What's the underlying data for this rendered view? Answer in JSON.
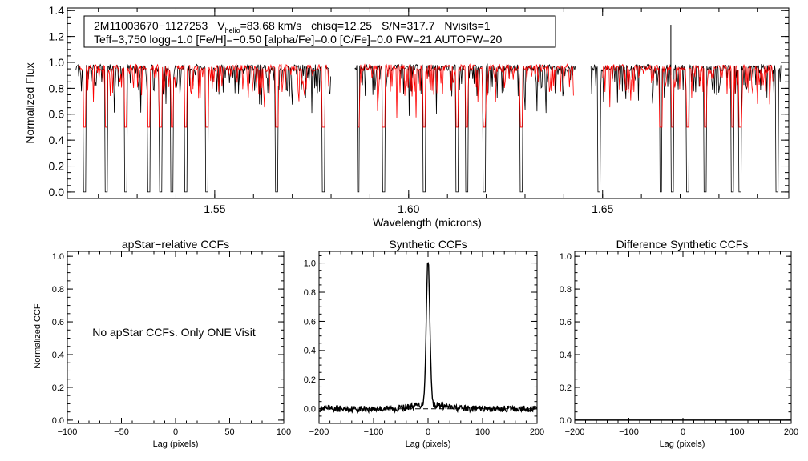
{
  "chart_data": [
    {
      "id": "spectrum",
      "type": "line",
      "xlabel": "Wavelength (microns)",
      "ylabel": "Normalized Flux",
      "xlim": [
        1.512,
        1.698
      ],
      "ylim": [
        -0.05,
        1.42
      ],
      "xticks": [
        {
          "v": 1.55,
          "label": "1.55"
        },
        {
          "v": 1.6,
          "label": "1.60"
        },
        {
          "v": 1.65,
          "label": "1.65"
        }
      ],
      "yticks": [
        {
          "v": 0.0,
          "label": "0.0"
        },
        {
          "v": 0.2,
          "label": "0.2"
        },
        {
          "v": 0.4,
          "label": "0.4"
        },
        {
          "v": 0.6,
          "label": "0.6"
        },
        {
          "v": 0.8,
          "label": "0.8"
        },
        {
          "v": 1.0,
          "label": "1.0"
        },
        {
          "v": 1.2,
          "label": "1.2"
        },
        {
          "v": 1.4,
          "label": "1.4"
        }
      ],
      "chips": [
        [
          1.5142,
          1.58
        ],
        [
          1.5861,
          1.643
        ],
        [
          1.647,
          1.696
        ]
      ],
      "model_ranges": [
        [
          1.515,
          1.5795
        ],
        [
          1.5868,
          1.6425
        ],
        [
          1.65,
          1.694
        ]
      ],
      "deep_lines": [
        1.5165,
        1.522,
        1.527,
        1.533,
        1.536,
        1.539,
        1.5425,
        1.548,
        1.566,
        1.578,
        1.587,
        1.5935,
        1.604,
        1.6125,
        1.615,
        1.6195,
        1.629,
        1.649,
        1.665,
        1.668,
        1.672,
        1.6765,
        1.6835,
        1.6855,
        1.695
      ],
      "series": [
        {
          "name": "Observed spectrum",
          "color": "#000000"
        },
        {
          "name": "Best-fit model",
          "color": "#ff0000"
        }
      ],
      "annotation": {
        "star_id": "2M11003670−1127253",
        "v_prefix": "V",
        "v_sub": "helio",
        "v_value": "=83.68 km/s",
        "chisq": "chisq=12.25",
        "sn": "S/N=317.7",
        "nvisits": "Nvisits=1",
        "params": "Teff=3,750 logg=1.0 [Fe/H]=−0.50 [alpha/Fe]=0.0 [C/Fe]=0.0 FW=21 AUTOFW=20"
      }
    },
    {
      "id": "apstar_ccf",
      "type": "line",
      "title": "apStar−relative CCFs",
      "xlabel": "Lag (pixels)",
      "ylabel": "Normalized CCF",
      "xlim": [
        -100,
        100
      ],
      "ylim": [
        -0.02,
        1.03
      ],
      "xticks": [
        {
          "v": -100,
          "label": "−100"
        },
        {
          "v": -50,
          "label": "−50"
        },
        {
          "v": 0,
          "label": "0"
        },
        {
          "v": 50,
          "label": "50"
        },
        {
          "v": 100,
          "label": "100"
        }
      ],
      "yticks": [
        {
          "v": 0.0,
          "label": "0.0"
        },
        {
          "v": 0.2,
          "label": "0.2"
        },
        {
          "v": 0.4,
          "label": "0.4"
        },
        {
          "v": 0.6,
          "label": "0.6"
        },
        {
          "v": 0.8,
          "label": "0.8"
        },
        {
          "v": 1.0,
          "label": "1.0"
        }
      ],
      "message": "No apStar CCFs.  Only ONE Visit",
      "series": []
    },
    {
      "id": "synthetic_ccf",
      "type": "line",
      "title": "Synthetic CCFs",
      "xlabel": "Lag (pixels)",
      "ylabel": "",
      "xlim": [
        -200,
        200
      ],
      "ylim": [
        -0.1,
        1.08
      ],
      "xticks": [
        {
          "v": -200,
          "label": "−200"
        },
        {
          "v": -100,
          "label": "−100"
        },
        {
          "v": 0,
          "label": "0"
        },
        {
          "v": 100,
          "label": "100"
        },
        {
          "v": 200,
          "label": "200"
        }
      ],
      "yticks": [
        {
          "v": 0.0,
          "label": "0.0"
        },
        {
          "v": 0.2,
          "label": "0.2"
        },
        {
          "v": 0.4,
          "label": "0.4"
        },
        {
          "v": 0.6,
          "label": "0.6"
        },
        {
          "v": 0.8,
          "label": "0.8"
        },
        {
          "v": 1.0,
          "label": "1.0"
        }
      ],
      "peak": {
        "x": 0,
        "y": 1.0,
        "width": 3.2
      },
      "baseline": 0.0,
      "noise_amplitude": 0.022,
      "series": [
        {
          "name": "Synthetic CCF",
          "color": "#000000"
        },
        {
          "name": "Zero level",
          "color": "#000000",
          "dashed": true
        }
      ]
    },
    {
      "id": "diff_synthetic_ccf",
      "type": "line",
      "title": "Difference Synthetic CCFs",
      "xlabel": "Lag (pixels)",
      "ylabel": "",
      "xlim": [
        -200,
        200
      ],
      "ylim": [
        -0.02,
        1.03
      ],
      "xticks": [
        {
          "v": -200,
          "label": "−200"
        },
        {
          "v": -100,
          "label": "−100"
        },
        {
          "v": 0,
          "label": "0"
        },
        {
          "v": 100,
          "label": "100"
        },
        {
          "v": 200,
          "label": "200"
        }
      ],
      "yticks": [
        {
          "v": 0.0,
          "label": "0.0"
        },
        {
          "v": 0.2,
          "label": "0.2"
        },
        {
          "v": 0.4,
          "label": "0.4"
        },
        {
          "v": 0.6,
          "label": "0.6"
        },
        {
          "v": 0.8,
          "label": "0.8"
        },
        {
          "v": 1.0,
          "label": "1.0"
        }
      ],
      "series": [
        {
          "name": "Difference CCF",
          "color": "#000000",
          "values_constant": 0.0
        }
      ]
    }
  ]
}
